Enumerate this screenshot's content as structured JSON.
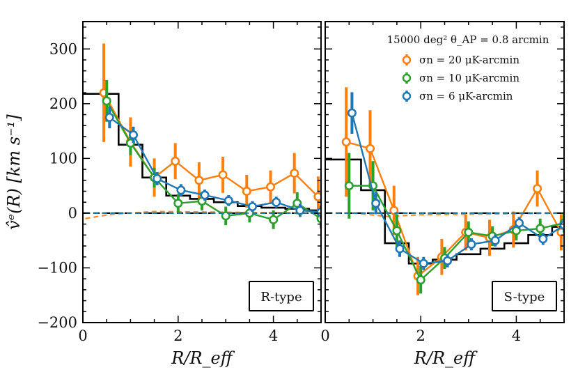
{
  "chart_data": {
    "type": "line",
    "ylabel": "v̂ᵉ(R) [km s⁻¹]",
    "xlabel": "R/R_eff",
    "xlim": [
      0,
      5
    ],
    "ylim": [
      -200,
      350
    ],
    "yticks": [
      300,
      200,
      100,
      0,
      -100,
      -200
    ],
    "ytick_labels": [
      "300",
      "200",
      "100",
      "0",
      "−100",
      "−200"
    ],
    "xticks": [
      0,
      2,
      4
    ],
    "xtick_labels": [
      "0",
      "2",
      "4"
    ],
    "legend": {
      "title": "15000 deg² θ_AP = 0.8 arcmin",
      "entries": [
        {
          "label": "σn = 20 μK-arcmin",
          "color": "#ff7f0e"
        },
        {
          "label": "σn = 10 μK-arcmin",
          "color": "#2ca02c"
        },
        {
          "label": "σn = 6 μK-arcmin",
          "color": "#1f77b4"
        }
      ]
    },
    "panels": [
      {
        "label": "R-type",
        "truth_step": {
          "edges": [
            0,
            0.75,
            1.25,
            1.75,
            2.25,
            2.75,
            3.25,
            3.75,
            4.25,
            4.75,
            5.0
          ],
          "values": [
            218,
            125,
            65,
            32,
            26,
            20,
            13,
            10,
            8,
            5
          ]
        },
        "series": [
          {
            "name": "σn = 20 μK-arcmin",
            "color": "#ff7f0e",
            "x": [
              0.44,
              1.0,
              1.5,
              1.94,
              2.44,
              2.94,
              3.44,
              3.94,
              4.44,
              4.94
            ],
            "y": [
              220,
              130,
              65,
              95,
              60,
              70,
              40,
              48,
              73,
              30
            ],
            "yerr": [
              90,
              45,
              35,
              33,
              33,
              33,
              30,
              30,
              37,
              37
            ],
            "baseline": [
              [
                0.05,
                -10
              ],
              [
                0.6,
                -2
              ],
              [
                1.5,
                3
              ],
              [
                5.0,
                0
              ]
            ]
          },
          {
            "name": "σn = 10 μK-arcmin",
            "color": "#2ca02c",
            "x": [
              0.5,
              1.0,
              1.5,
              2.0,
              2.5,
              3.0,
              3.5,
              4.0,
              4.5,
              5.0
            ],
            "y": [
              205,
              128,
              65,
              18,
              22,
              -5,
              0,
              -12,
              18,
              -10
            ],
            "yerr": [
              38,
              22,
              18,
              17,
              17,
              17,
              17,
              17,
              20,
              18
            ],
            "baseline": [
              [
                0.05,
                0
              ],
              [
                5.0,
                0
              ]
            ]
          },
          {
            "name": "σn = 6 μK-arcmin",
            "color": "#1f77b4",
            "x": [
              0.56,
              1.06,
              1.56,
              2.06,
              2.56,
              3.06,
              3.56,
              4.06,
              4.56,
              5.0
            ],
            "y": [
              175,
              143,
              63,
              42,
              33,
              23,
              12,
              20,
              5,
              2
            ],
            "yerr": [
              20,
              15,
              12,
              11,
              10,
              10,
              10,
              10,
              12,
              12
            ],
            "baseline": [
              [
                0.05,
                0
              ],
              [
                5.0,
                0
              ]
            ]
          }
        ]
      },
      {
        "label": "S-type",
        "truth_step": {
          "edges": [
            0,
            0.5,
            0.75,
            1.25,
            1.75,
            2.25,
            2.75,
            3.25,
            3.75,
            4.25,
            4.75,
            5.0
          ],
          "values": [
            98,
            98,
            42,
            -55,
            -92,
            -85,
            -75,
            -65,
            -55,
            -40,
            -25
          ]
        },
        "series": [
          {
            "name": "σn = 20 μK-arcmin",
            "color": "#ff7f0e",
            "x": [
              0.44,
              0.94,
              1.44,
              1.94,
              2.44,
              2.94,
              3.44,
              3.94,
              4.44,
              4.94
            ],
            "y": [
              130,
              118,
              5,
              -115,
              -80,
              -35,
              -45,
              -30,
              45,
              -35
            ],
            "yerr": [
              100,
              70,
              45,
              35,
              33,
              33,
              33,
              33,
              33,
              33
            ],
            "baseline": [
              [
                0.05,
                0
              ],
              [
                0.6,
                0
              ],
              [
                1.3,
                -6
              ],
              [
                2.0,
                -3
              ],
              [
                5.0,
                0
              ]
            ]
          },
          {
            "name": "σn = 10 μK-arcmin",
            "color": "#2ca02c",
            "x": [
              0.5,
              1.0,
              1.5,
              2.0,
              2.5,
              3.0,
              3.5,
              4.0,
              4.5,
              5.0
            ],
            "y": [
              50,
              50,
              -32,
              -122,
              -82,
              -35,
              -42,
              -32,
              -28,
              -18
            ],
            "yerr": [
              60,
              45,
              30,
              25,
              20,
              20,
              18,
              18,
              18,
              18
            ],
            "baseline": [
              [
                0.05,
                0
              ],
              [
                5.0,
                0
              ]
            ]
          },
          {
            "name": "σn = 6 μK-arcmin",
            "color": "#1f77b4",
            "x": [
              0.56,
              1.06,
              1.56,
              2.06,
              2.56,
              3.06,
              3.56,
              4.06,
              4.56,
              5.0
            ],
            "y": [
              183,
              18,
              -65,
              -92,
              -87,
              -57,
              -50,
              -18,
              -47,
              -22
            ],
            "yerr": [
              38,
              20,
              15,
              12,
              12,
              11,
              11,
              11,
              11,
              11
            ],
            "baseline": [
              [
                0.05,
                0
              ],
              [
                5.0,
                0
              ]
            ]
          }
        ]
      }
    ]
  }
}
